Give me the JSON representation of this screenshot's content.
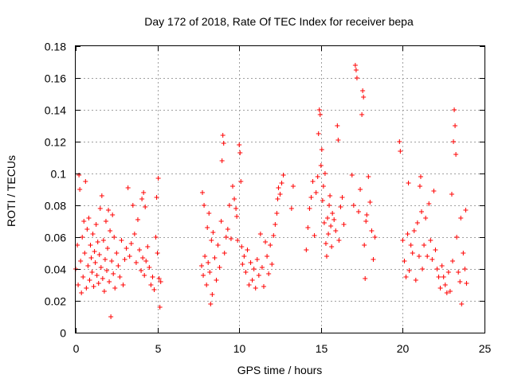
{
  "chart_data": {
    "type": "scatter",
    "title": "Day 172 of 2018, Rate Of TEC Index for receiver bepa",
    "xlabel": "GPS time / hours",
    "ylabel": "ROTI / TECUs",
    "xlim": [
      0,
      25
    ],
    "ylim": [
      0,
      0.18
    ],
    "x_ticks": [
      0,
      5,
      10,
      15,
      20,
      25
    ],
    "x_tick_labels": [
      "0",
      "5",
      "10",
      "15",
      "20",
      "25"
    ],
    "y_ticks": [
      0,
      0.02,
      0.04,
      0.06,
      0.08,
      0.1,
      0.12,
      0.14,
      0.16,
      0.18
    ],
    "y_tick_labels": [
      "0",
      "0.02",
      "0.04",
      "0.06",
      "0.08",
      "0.1",
      "0.12",
      "0.14",
      "0.16",
      "0.18"
    ],
    "grid": true,
    "marker": "+",
    "marker_color": "#ff0000",
    "series": [
      {
        "name": "ROTI",
        "points": [
          [
            0.0,
            0.04
          ],
          [
            0.1,
            0.055
          ],
          [
            0.15,
            0.03
          ],
          [
            0.2,
            0.099
          ],
          [
            0.25,
            0.09
          ],
          [
            0.3,
            0.045
          ],
          [
            0.35,
            0.025
          ],
          [
            0.4,
            0.06
          ],
          [
            0.45,
            0.035
          ],
          [
            0.5,
            0.07
          ],
          [
            0.55,
            0.05
          ],
          [
            0.6,
            0.095
          ],
          [
            0.65,
            0.028
          ],
          [
            0.7,
            0.065
          ],
          [
            0.75,
            0.042
          ],
          [
            0.8,
            0.072
          ],
          [
            0.85,
            0.033
          ],
          [
            0.9,
            0.055
          ],
          [
            0.95,
            0.047
          ],
          [
            1.0,
            0.038
          ],
          [
            1.05,
            0.062
          ],
          [
            1.1,
            0.029
          ],
          [
            1.15,
            0.051
          ],
          [
            1.2,
            0.044
          ],
          [
            1.25,
            0.068
          ],
          [
            1.3,
            0.036
          ],
          [
            1.35,
            0.057
          ],
          [
            1.4,
            0.031
          ],
          [
            1.45,
            0.049
          ],
          [
            1.5,
            0.078
          ],
          [
            1.55,
            0.041
          ],
          [
            1.6,
            0.086
          ],
          [
            1.65,
            0.034
          ],
          [
            1.7,
            0.058
          ],
          [
            1.75,
            0.026
          ],
          [
            1.8,
            0.046
          ],
          [
            1.85,
            0.07
          ],
          [
            1.9,
            0.039
          ],
          [
            1.95,
            0.053
          ],
          [
            2.0,
            0.077
          ],
          [
            2.05,
            0.032
          ],
          [
            2.1,
            0.064
          ],
          [
            2.15,
            0.01
          ],
          [
            2.2,
            0.045
          ],
          [
            2.25,
            0.074
          ],
          [
            2.3,
            0.037
          ],
          [
            2.35,
            0.06
          ],
          [
            2.4,
            0.028
          ],
          [
            2.5,
            0.05
          ],
          [
            2.6,
            0.042
          ],
          [
            2.7,
            0.035
          ],
          [
            2.8,
            0.058
          ],
          [
            2.9,
            0.03
          ],
          [
            3.0,
            0.046
          ],
          [
            3.1,
            0.053
          ],
          [
            3.2,
            0.091
          ],
          [
            3.3,
            0.048
          ],
          [
            3.4,
            0.056
          ],
          [
            3.5,
            0.08
          ],
          [
            3.6,
            0.062
          ],
          [
            3.7,
            0.044
          ],
          [
            3.8,
            0.071
          ],
          [
            3.9,
            0.052
          ],
          [
            4.0,
            0.039
          ],
          [
            4.05,
            0.084
          ],
          [
            4.1,
            0.047
          ],
          [
            4.15,
            0.088
          ],
          [
            4.2,
            0.036
          ],
          [
            4.25,
            0.079
          ],
          [
            4.3,
            0.045
          ],
          [
            4.4,
            0.054
          ],
          [
            4.5,
            0.041
          ],
          [
            4.6,
            0.03
          ],
          [
            4.7,
            0.035
          ],
          [
            4.8,
            0.027
          ],
          [
            4.9,
            0.06
          ],
          [
            4.95,
            0.085
          ],
          [
            5.0,
            0.05
          ],
          [
            5.05,
            0.097
          ],
          [
            5.1,
            0.034
          ],
          [
            5.15,
            0.016
          ],
          [
            5.2,
            0.032
          ],
          [
            7.7,
            0.042
          ],
          [
            7.75,
            0.088
          ],
          [
            7.8,
            0.036
          ],
          [
            7.85,
            0.08
          ],
          [
            7.9,
            0.048
          ],
          [
            8.0,
            0.03
          ],
          [
            8.05,
            0.066
          ],
          [
            8.1,
            0.044
          ],
          [
            8.15,
            0.075
          ],
          [
            8.2,
            0.038
          ],
          [
            8.25,
            0.018
          ],
          [
            8.3,
            0.058
          ],
          [
            8.35,
            0.024
          ],
          [
            8.4,
            0.063
          ],
          [
            8.5,
            0.047
          ],
          [
            8.6,
            0.033
          ],
          [
            8.7,
            0.055
          ],
          [
            8.8,
            0.041
          ],
          [
            8.9,
            0.07
          ],
          [
            8.95,
            0.108
          ],
          [
            9.0,
            0.124
          ],
          [
            9.05,
            0.119
          ],
          [
            9.1,
            0.05
          ],
          [
            9.2,
            0.06
          ],
          [
            9.3,
            0.065
          ],
          [
            9.4,
            0.08
          ],
          [
            9.5,
            0.059
          ],
          [
            9.6,
            0.092
          ],
          [
            9.7,
            0.084
          ],
          [
            9.8,
            0.078
          ],
          [
            9.85,
            0.073
          ],
          [
            9.9,
            0.058
          ],
          [
            10.0,
            0.118
          ],
          [
            10.05,
            0.113
          ],
          [
            10.1,
            0.095
          ],
          [
            10.15,
            0.054
          ],
          [
            10.2,
            0.043
          ],
          [
            10.3,
            0.048
          ],
          [
            10.4,
            0.038
          ],
          [
            10.5,
            0.052
          ],
          [
            10.6,
            0.03
          ],
          [
            10.7,
            0.044
          ],
          [
            10.8,
            0.033
          ],
          [
            10.9,
            0.04
          ],
          [
            11.0,
            0.028
          ],
          [
            11.1,
            0.046
          ],
          [
            11.2,
            0.036
          ],
          [
            11.3,
            0.062
          ],
          [
            11.4,
            0.041
          ],
          [
            11.5,
            0.029
          ],
          [
            11.6,
            0.057
          ],
          [
            11.7,
            0.048
          ],
          [
            11.8,
            0.037
          ],
          [
            11.9,
            0.055
          ],
          [
            12.0,
            0.043
          ],
          [
            12.1,
            0.061
          ],
          [
            12.2,
            0.068
          ],
          [
            12.3,
            0.075
          ],
          [
            12.35,
            0.084
          ],
          [
            12.4,
            0.091
          ],
          [
            12.5,
            0.087
          ],
          [
            12.6,
            0.094
          ],
          [
            12.7,
            0.099
          ],
          [
            13.2,
            0.078
          ],
          [
            13.3,
            0.092
          ],
          [
            14.1,
            0.052
          ],
          [
            14.2,
            0.066
          ],
          [
            14.3,
            0.078
          ],
          [
            14.4,
            0.085
          ],
          [
            14.5,
            0.095
          ],
          [
            14.6,
            0.061
          ],
          [
            14.7,
            0.088
          ],
          [
            14.8,
            0.098
          ],
          [
            14.85,
            0.125
          ],
          [
            14.9,
            0.14
          ],
          [
            14.95,
            0.137
          ],
          [
            15.0,
            0.105
          ],
          [
            15.05,
            0.115
          ],
          [
            15.1,
            0.083
          ],
          [
            15.15,
            0.092
          ],
          [
            15.2,
            0.069
          ],
          [
            15.25,
            0.1
          ],
          [
            15.3,
            0.056
          ],
          [
            15.35,
            0.048
          ],
          [
            15.4,
            0.072
          ],
          [
            15.45,
            0.062
          ],
          [
            15.5,
            0.08
          ],
          [
            15.55,
            0.086
          ],
          [
            15.6,
            0.067
          ],
          [
            15.65,
            0.054
          ],
          [
            15.7,
            0.075
          ],
          [
            15.8,
            0.071
          ],
          [
            15.9,
            0.064
          ],
          [
            16.0,
            0.13
          ],
          [
            16.05,
            0.121
          ],
          [
            16.1,
            0.058
          ],
          [
            16.2,
            0.079
          ],
          [
            16.3,
            0.085
          ],
          [
            16.4,
            0.068
          ],
          [
            16.9,
            0.099
          ],
          [
            17.0,
            0.08
          ],
          [
            17.1,
            0.168
          ],
          [
            17.15,
            0.165
          ],
          [
            17.2,
            0.16
          ],
          [
            17.3,
            0.076
          ],
          [
            17.4,
            0.09
          ],
          [
            17.5,
            0.137
          ],
          [
            17.55,
            0.152
          ],
          [
            17.6,
            0.148
          ],
          [
            17.65,
            0.055
          ],
          [
            17.7,
            0.034
          ],
          [
            17.75,
            0.07
          ],
          [
            17.8,
            0.074
          ],
          [
            17.9,
            0.098
          ],
          [
            18.0,
            0.082
          ],
          [
            18.1,
            0.064
          ],
          [
            18.2,
            0.046
          ],
          [
            18.3,
            0.06
          ],
          [
            19.8,
            0.12
          ],
          [
            19.85,
            0.114
          ],
          [
            20.0,
            0.058
          ],
          [
            20.1,
            0.045
          ],
          [
            20.2,
            0.035
          ],
          [
            20.3,
            0.062
          ],
          [
            20.35,
            0.094
          ],
          [
            20.4,
            0.039
          ],
          [
            20.5,
            0.055
          ],
          [
            20.6,
            0.05
          ],
          [
            20.7,
            0.064
          ],
          [
            20.8,
            0.033
          ],
          [
            20.9,
            0.069
          ],
          [
            21.0,
            0.048
          ],
          [
            21.05,
            0.092
          ],
          [
            21.1,
            0.098
          ],
          [
            21.15,
            0.076
          ],
          [
            21.2,
            0.04
          ],
          [
            21.3,
            0.055
          ],
          [
            21.4,
            0.072
          ],
          [
            21.5,
            0.048
          ],
          [
            21.6,
            0.081
          ],
          [
            21.7,
            0.058
          ],
          [
            21.8,
            0.046
          ],
          [
            21.9,
            0.089
          ],
          [
            22.0,
            0.052
          ],
          [
            22.1,
            0.04
          ],
          [
            22.2,
            0.035
          ],
          [
            22.3,
            0.028
          ],
          [
            22.4,
            0.042
          ],
          [
            22.5,
            0.035
          ],
          [
            22.6,
            0.03
          ],
          [
            22.7,
            0.025
          ],
          [
            22.8,
            0.038
          ],
          [
            22.9,
            0.026
          ],
          [
            23.0,
            0.087
          ],
          [
            23.05,
            0.045
          ],
          [
            23.1,
            0.12
          ],
          [
            23.15,
            0.14
          ],
          [
            23.2,
            0.13
          ],
          [
            23.25,
            0.112
          ],
          [
            23.3,
            0.06
          ],
          [
            23.4,
            0.038
          ],
          [
            23.5,
            0.032
          ],
          [
            23.55,
            0.072
          ],
          [
            23.6,
            0.018
          ],
          [
            23.7,
            0.05
          ],
          [
            23.8,
            0.04
          ],
          [
            23.85,
            0.077
          ],
          [
            23.9,
            0.031
          ]
        ]
      }
    ]
  }
}
